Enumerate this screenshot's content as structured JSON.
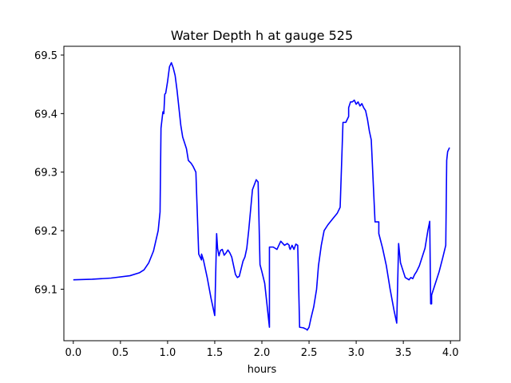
{
  "chart_data": {
    "type": "line",
    "title": "Water Depth h at gauge 525",
    "xlabel": "hours",
    "ylabel": "",
    "xlim": [
      -0.1,
      4.1
    ],
    "ylim": [
      69.012,
      69.515
    ],
    "xticks": [
      0.0,
      0.5,
      1.0,
      1.5,
      2.0,
      2.5,
      3.0,
      3.5,
      4.0
    ],
    "xtick_labels": [
      "0.0",
      "0.5",
      "1.0",
      "1.5",
      "2.0",
      "2.5",
      "3.0",
      "3.5",
      "4.0"
    ],
    "yticks": [
      69.1,
      69.2,
      69.3,
      69.4,
      69.5
    ],
    "ytick_labels": [
      "69.1",
      "69.2",
      "69.3",
      "69.4",
      "69.5"
    ],
    "grid": false,
    "series_color": "#0000ff",
    "series": [
      {
        "name": "",
        "x": [
          0.0,
          0.2,
          0.4,
          0.6,
          0.7,
          0.75,
          0.8,
          0.85,
          0.9,
          0.92,
          0.93,
          0.93,
          0.95,
          0.96,
          0.97,
          0.98,
          0.99,
          1.0,
          1.02,
          1.04,
          1.06,
          1.08,
          1.1,
          1.12,
          1.14,
          1.16,
          1.18,
          1.2,
          1.22,
          1.25,
          1.27,
          1.3,
          1.33,
          1.36,
          1.36,
          1.38,
          1.42,
          1.46,
          1.5,
          1.52,
          1.52,
          1.53,
          1.545,
          1.56,
          1.58,
          1.6,
          1.62,
          1.64,
          1.66,
          1.68,
          1.7,
          1.72,
          1.74,
          1.76,
          1.78,
          1.8,
          1.82,
          1.84,
          1.86,
          1.88,
          1.9,
          1.94,
          1.96,
          1.98,
          2.0,
          2.03,
          2.05,
          2.07,
          2.08,
          2.08,
          2.12,
          2.16,
          2.2,
          2.24,
          2.27,
          2.29,
          2.29,
          2.3,
          2.32,
          2.34,
          2.36,
          2.38,
          2.4,
          2.44,
          2.48,
          2.48,
          2.5,
          2.52,
          2.55,
          2.58,
          2.6,
          2.63,
          2.66,
          2.7,
          2.75,
          2.8,
          2.83,
          2.86,
          2.89,
          2.92,
          2.92,
          2.94,
          2.96,
          2.98,
          3.0,
          3.02,
          3.04,
          3.06,
          3.08,
          3.1,
          3.12,
          3.14,
          3.16,
          3.2,
          3.24,
          3.24,
          3.28,
          3.32,
          3.36,
          3.4,
          3.43,
          3.45,
          3.45,
          3.47,
          3.5,
          3.52,
          3.54,
          3.56,
          3.58,
          3.6,
          3.62,
          3.64,
          3.67,
          3.7,
          3.73,
          3.76,
          3.78,
          3.79,
          3.8,
          3.8,
          3.84,
          3.88,
          3.92,
          3.95,
          3.96,
          3.96,
          3.97,
          3.99
        ],
        "values": [
          69.116,
          69.117,
          69.119,
          69.123,
          69.128,
          69.133,
          69.145,
          69.165,
          69.2,
          69.232,
          69.375,
          69.375,
          69.403,
          69.4,
          69.433,
          69.435,
          69.445,
          69.455,
          69.48,
          69.487,
          69.478,
          69.465,
          69.44,
          69.41,
          69.38,
          69.36,
          69.35,
          69.34,
          69.32,
          69.315,
          69.31,
          69.3,
          69.16,
          69.15,
          69.16,
          69.15,
          69.12,
          69.085,
          69.055,
          69.195,
          69.195,
          69.17,
          69.157,
          69.166,
          69.168,
          69.158,
          69.162,
          69.167,
          69.162,
          69.155,
          69.14,
          69.125,
          69.12,
          69.122,
          69.135,
          69.148,
          69.155,
          69.17,
          69.2,
          69.235,
          69.27,
          69.287,
          69.283,
          69.142,
          69.13,
          69.11,
          69.08,
          69.05,
          69.035,
          69.172,
          69.172,
          69.168,
          69.182,
          69.175,
          69.178,
          69.175,
          69.172,
          69.168,
          69.175,
          69.168,
          69.177,
          69.175,
          69.035,
          69.034,
          69.031,
          69.03,
          69.035,
          69.05,
          69.07,
          69.1,
          69.14,
          69.175,
          69.2,
          69.21,
          69.22,
          69.23,
          69.24,
          69.385,
          69.385,
          69.395,
          69.41,
          69.42,
          69.42,
          69.423,
          69.416,
          69.42,
          69.413,
          69.417,
          69.41,
          69.405,
          69.39,
          69.37,
          69.355,
          69.215,
          69.215,
          69.195,
          69.17,
          69.14,
          69.1,
          69.065,
          69.042,
          69.178,
          69.178,
          69.145,
          69.13,
          69.12,
          69.118,
          69.116,
          69.12,
          69.118,
          69.125,
          69.13,
          69.14,
          69.155,
          69.17,
          69.2,
          69.216,
          69.075,
          69.075,
          69.09,
          69.11,
          69.13,
          69.155,
          69.175,
          69.32,
          69.32,
          69.335,
          69.342
        ]
      }
    ]
  }
}
